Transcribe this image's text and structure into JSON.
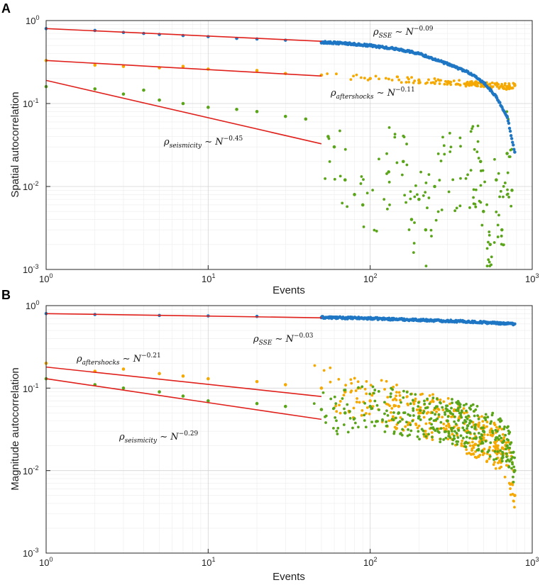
{
  "figure": {
    "panels": [
      "A",
      "B"
    ]
  },
  "chart_data": [
    {
      "panel": "A",
      "type": "scatter",
      "xscale": "log",
      "yscale": "log",
      "xlim": [
        1,
        1000
      ],
      "ylim": [
        0.001,
        1
      ],
      "xlabel": "Events",
      "ylabel": "Spatial autocorrelation",
      "grid": true,
      "x_ticks": [
        {
          "value": 1,
          "base": "10",
          "exp": "0"
        },
        {
          "value": 10,
          "base": "10",
          "exp": "1"
        },
        {
          "value": 100,
          "base": "10",
          "exp": "2"
        },
        {
          "value": 1000,
          "base": "10",
          "exp": "3"
        }
      ],
      "y_ticks": [
        {
          "value": 0.001,
          "base": "10",
          "exp": "-3"
        },
        {
          "value": 0.01,
          "base": "10",
          "exp": "-2"
        },
        {
          "value": 0.1,
          "base": "10",
          "exp": "-1"
        },
        {
          "value": 1,
          "base": "10",
          "exp": "0"
        }
      ],
      "series": [
        {
          "name": "SSE",
          "color": "#1f77c4",
          "points": [
            [
              1,
              0.8
            ],
            [
              2,
              0.76
            ],
            [
              3,
              0.72
            ],
            [
              4,
              0.7
            ],
            [
              5,
              0.68
            ],
            [
              7,
              0.66
            ],
            [
              10,
              0.64
            ],
            [
              15,
              0.61
            ],
            [
              20,
              0.6
            ],
            [
              30,
              0.58
            ],
            [
              50,
              0.55
            ],
            [
              70,
              0.53
            ],
            [
              100,
              0.5
            ],
            [
              150,
              0.45
            ],
            [
              200,
              0.4
            ],
            [
              300,
              0.3
            ],
            [
              400,
              0.24
            ],
            [
              500,
              0.18
            ],
            [
              600,
              0.12
            ],
            [
              700,
              0.07
            ],
            [
              780,
              0.026
            ]
          ],
          "fit": {
            "exponent": -0.09,
            "x_range": [
              1,
              50
            ],
            "y_at_1": 0.8
          }
        },
        {
          "name": "aftershocks",
          "color": "#f5a900",
          "points": [
            [
              1,
              0.33
            ],
            [
              2,
              0.29
            ],
            [
              3,
              0.28
            ],
            [
              5,
              0.27
            ],
            [
              7,
              0.28
            ],
            [
              10,
              0.26
            ],
            [
              20,
              0.25
            ],
            [
              30,
              0.23
            ],
            [
              50,
              0.22
            ],
            [
              100,
              0.2
            ],
            [
              200,
              0.19
            ],
            [
              300,
              0.18
            ],
            [
              500,
              0.17
            ],
            [
              700,
              0.16
            ],
            [
              780,
              0.165
            ]
          ],
          "fit": {
            "exponent": -0.11,
            "x_range": [
              1,
              50
            ],
            "y_at_1": 0.33
          }
        },
        {
          "name": "seismicity",
          "color": "#5aa41a",
          "points": [
            [
              1,
              0.16
            ],
            [
              2,
              0.15
            ],
            [
              3,
              0.13
            ],
            [
              4,
              0.145
            ],
            [
              5,
              0.11
            ],
            [
              7,
              0.1
            ],
            [
              10,
              0.09
            ],
            [
              15,
              0.085
            ],
            [
              20,
              0.08
            ],
            [
              30,
              0.07
            ],
            [
              40,
              0.065
            ],
            [
              55,
              0.04
            ],
            [
              60,
              0.03
            ],
            [
              70,
              0.012
            ],
            [
              80,
              0.008
            ],
            [
              90,
              0.006
            ],
            [
              130,
              0.015
            ],
            [
              160,
              0.02
            ],
            [
              180,
              0.004
            ],
            [
              200,
              0.007
            ],
            [
              220,
              0.003
            ],
            [
              250,
              0.01
            ],
            [
              480,
              0.02
            ],
            [
              500,
              0.005
            ],
            [
              550,
              0.002
            ],
            [
              600,
              0.012
            ],
            [
              650,
              0.003
            ],
            [
              700,
              0.025
            ],
            [
              750,
              0.009
            ]
          ],
          "fit": {
            "exponent": -0.45,
            "x_range": [
              1,
              50
            ],
            "y_at_1": 0.19
          }
        }
      ],
      "annotations": [
        {
          "base": "ρ",
          "sub": "SSE",
          "rest": " ∼ N",
          "sup": "−0.09"
        },
        {
          "base": "ρ",
          "sub": "aftershocks",
          "rest": " ∼ N",
          "sup": "−0.11"
        },
        {
          "base": "ρ",
          "sub": "seismicity",
          "rest": " ∼ N",
          "sup": "−0.45"
        }
      ]
    },
    {
      "panel": "B",
      "type": "scatter",
      "xscale": "log",
      "yscale": "log",
      "xlim": [
        1,
        1000
      ],
      "ylim": [
        0.001,
        1
      ],
      "xlabel": "Events",
      "ylabel": "Magnitude autocorrelation",
      "grid": true,
      "x_ticks": [
        {
          "value": 1,
          "base": "10",
          "exp": "0"
        },
        {
          "value": 10,
          "base": "10",
          "exp": "1"
        },
        {
          "value": 100,
          "base": "10",
          "exp": "2"
        },
        {
          "value": 1000,
          "base": "10",
          "exp": "3"
        }
      ],
      "y_ticks": [
        {
          "value": 0.001,
          "base": "10",
          "exp": "-3"
        },
        {
          "value": 0.01,
          "base": "10",
          "exp": "-2"
        },
        {
          "value": 0.1,
          "base": "10",
          "exp": "-1"
        },
        {
          "value": 1,
          "base": "10",
          "exp": "0"
        }
      ],
      "series": [
        {
          "name": "SSE",
          "color": "#1f77c4",
          "points": [
            [
              1,
              0.8
            ],
            [
              2,
              0.78
            ],
            [
              5,
              0.76
            ],
            [
              10,
              0.75
            ],
            [
              20,
              0.74
            ],
            [
              50,
              0.72
            ],
            [
              100,
              0.7
            ],
            [
              200,
              0.67
            ],
            [
              400,
              0.64
            ],
            [
              780,
              0.6
            ]
          ],
          "fit": {
            "exponent": -0.03,
            "x_range": [
              1,
              50
            ],
            "y_at_1": 0.8
          }
        },
        {
          "name": "aftershocks",
          "color": "#f5a900",
          "points": [
            [
              1,
              0.2
            ],
            [
              2,
              0.16
            ],
            [
              3,
              0.17
            ],
            [
              5,
              0.15
            ],
            [
              7,
              0.14
            ],
            [
              10,
              0.13
            ],
            [
              20,
              0.12
            ],
            [
              30,
              0.11
            ],
            [
              50,
              0.1
            ],
            [
              70,
              0.09
            ],
            [
              100,
              0.07
            ],
            [
              150,
              0.06
            ],
            [
              200,
              0.05
            ],
            [
              300,
              0.04
            ],
            [
              400,
              0.03
            ],
            [
              500,
              0.025
            ],
            [
              600,
              0.02
            ],
            [
              700,
              0.015
            ],
            [
              780,
              0.005
            ]
          ],
          "fit": {
            "exponent": -0.21,
            "x_range": [
              1,
              50
            ],
            "y_at_1": 0.18
          }
        },
        {
          "name": "seismicity",
          "color": "#5aa41a",
          "points": [
            [
              1,
              0.13
            ],
            [
              2,
              0.11
            ],
            [
              3,
              0.1
            ],
            [
              5,
              0.09
            ],
            [
              7,
              0.08
            ],
            [
              10,
              0.07
            ],
            [
              20,
              0.065
            ],
            [
              30,
              0.06
            ],
            [
              50,
              0.055
            ],
            [
              70,
              0.05
            ],
            [
              100,
              0.06
            ],
            [
              150,
              0.05
            ],
            [
              200,
              0.045
            ],
            [
              300,
              0.04
            ],
            [
              400,
              0.035
            ],
            [
              500,
              0.03
            ],
            [
              600,
              0.025
            ],
            [
              700,
              0.02
            ],
            [
              780,
              0.01
            ]
          ],
          "fit": {
            "exponent": -0.29,
            "x_range": [
              1,
              50
            ],
            "y_at_1": 0.13
          }
        }
      ],
      "annotations": [
        {
          "base": "ρ",
          "sub": "SSE",
          "rest": " ∼ N",
          "sup": "−0.03"
        },
        {
          "base": "ρ",
          "sub": "aftershocks",
          "rest": " ∼ N",
          "sup": "−0.21"
        },
        {
          "base": "ρ",
          "sub": "seismicity",
          "rest": " ∼ N",
          "sup": "−0.29"
        }
      ]
    }
  ]
}
